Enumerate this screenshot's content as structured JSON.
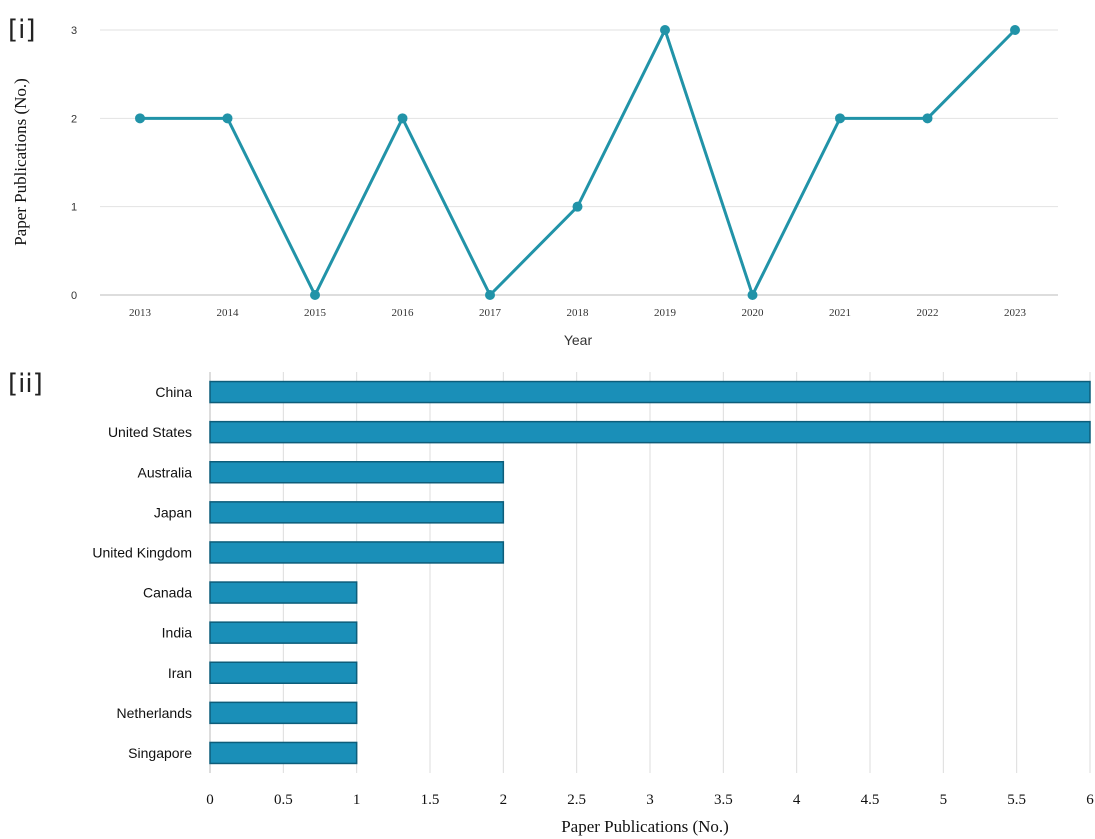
{
  "panels": {
    "top_label": "[i]",
    "bottom_label": "[ii]"
  },
  "colors": {
    "line": "#2193a8",
    "bar": "#1a8fb8",
    "bar_edge": "#0d5d7a",
    "grid": "#dddddd"
  },
  "chart_data": [
    {
      "type": "line",
      "title": "",
      "xlabel": "Year",
      "ylabel": "Paper Publications (No.)",
      "x": [
        "2013",
        "2014",
        "2015",
        "2016",
        "2017",
        "2018",
        "2019",
        "2020",
        "2021",
        "2022",
        "2023"
      ],
      "values": [
        2,
        2,
        0,
        2,
        0,
        1,
        3,
        0,
        2,
        2,
        3
      ],
      "yticks": [
        "0",
        "1",
        "2",
        "3"
      ],
      "ylim": [
        0,
        3
      ],
      "grid": "horizontal"
    },
    {
      "type": "bar",
      "orientation": "horizontal",
      "title": "",
      "xlabel": "Paper Publications (No.)",
      "ylabel": "",
      "categories": [
        "China",
        "United States",
        "Australia",
        "Japan",
        "United Kingdom",
        "Canada",
        "India",
        "Iran",
        "Netherlands",
        "Singapore"
      ],
      "values": [
        6,
        6,
        2,
        2,
        2,
        1,
        1,
        1,
        1,
        1
      ],
      "xticks": [
        "0",
        "0.5",
        "1",
        "1.5",
        "2",
        "2.5",
        "3",
        "3.5",
        "4",
        "4.5",
        "5",
        "5.5",
        "6"
      ],
      "xlim": [
        0,
        6
      ],
      "grid": "vertical"
    }
  ]
}
